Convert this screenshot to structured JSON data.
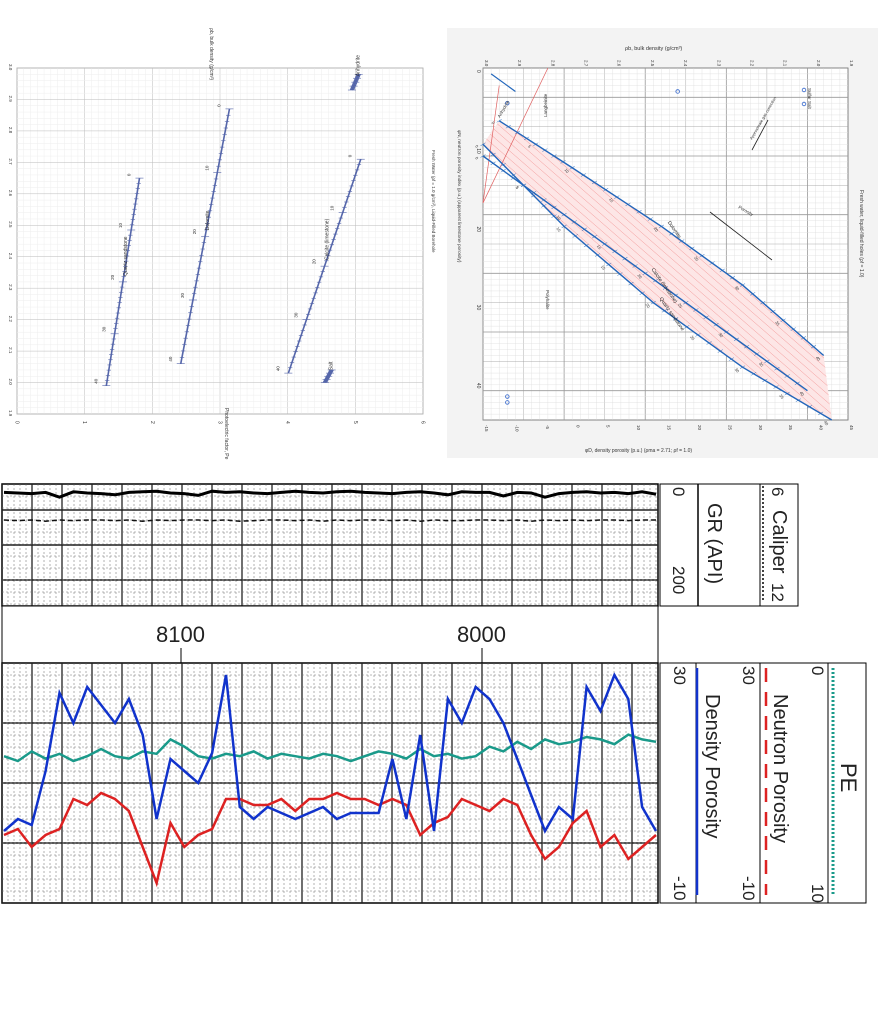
{
  "chart_data": [
    {
      "type": "line",
      "title": "",
      "xlabel": "ρb, bulk density (g/cm³)",
      "ylabel": "Photoelectric factor, Pe",
      "y_ticks": [
        "0",
        "1",
        "2",
        "3",
        "4",
        "5",
        "6"
      ],
      "x_ticks": [
        "3.0",
        "2.9",
        "2.8",
        "2.7",
        "2.6",
        "2.5",
        "2.4",
        "2.3",
        "2.2",
        "2.1",
        "2.0",
        "1.9"
      ],
      "xlim": [
        3.0,
        1.9
      ],
      "ylim": [
        0,
        6
      ],
      "fluid_note": "Fresh Water (ρf = 1.0 g/cm³), Liquid-Filled Borehole",
      "series": [
        {
          "name": "Quartz sandstone",
          "porosity_ticks": [
            "0",
            "10",
            "20",
            "30",
            "40"
          ],
          "x": [
            2.65,
            1.99
          ],
          "y": [
            1.81,
            1.32
          ]
        },
        {
          "name": "Dolomite",
          "porosity_ticks": [
            "0",
            "10",
            "20",
            "30",
            "40"
          ],
          "x": [
            2.87,
            2.06
          ],
          "y": [
            3.14,
            2.42
          ]
        },
        {
          "name": "Calcite (limestone)",
          "porosity_ticks": [
            "0",
            "10",
            "20",
            "30",
            "40"
          ],
          "x": [
            2.71,
            2.03
          ],
          "y": [
            5.08,
            4.01
          ]
        },
        {
          "name": "Anhydrite",
          "x": [
            2.98,
            2.93
          ],
          "y": [
            5.05,
            4.95
          ]
        },
        {
          "name": "Salt",
          "x": [
            2.04,
            2.0
          ],
          "y": [
            4.65,
            4.55
          ]
        }
      ]
    },
    {
      "type": "line",
      "title": "ρb, bulk density (g/cm³)",
      "xlabel": "φD, density porosity (p.u.) (ρma = 2.71; ρf = 1.0)",
      "ylabel": "φN, neutron porosity index (p.u.) (apparent limestone porosity)",
      "y_ticks": [
        "0",
        "10",
        "20",
        "30",
        "40"
      ],
      "x_ticks": [
        "-15",
        "-10",
        "-5",
        "0",
        "5",
        "10",
        "15",
        "20",
        "25",
        "30",
        "35",
        "40",
        "45"
      ],
      "top_ticks": [
        "3.0",
        "2.9",
        "2.8",
        "2.7",
        "2.6",
        "2.5",
        "2.4",
        "2.3",
        "2.2",
        "2.1",
        "2.0",
        "1.9"
      ],
      "xlim": [
        -15,
        45
      ],
      "ylim": [
        0,
        45
      ],
      "fluid_note": "Fresh water, liquid-filled holes (ρf = 1.0)",
      "legend": [
        "Sulfur",
        "Salt"
      ],
      "annotations": [
        "Porosity",
        "Approximate gas correction",
        "Langbeinite",
        "Polyhalite",
        "Anhydrite"
      ],
      "series": [
        {
          "name": "Quartz sandstone",
          "porosity_ticks": [
            "0",
            "5",
            "10",
            "15",
            "20",
            "25",
            "30",
            "35",
            "40"
          ],
          "x": [
            -2,
            12,
            25,
            36,
            45
          ],
          "y": [
            0,
            10,
            21,
            32,
            43
          ]
        },
        {
          "name": "Calcite (limestone)",
          "porosity_ticks": [
            "0",
            "5",
            "10",
            "15",
            "20",
            "25",
            "30",
            "35",
            "40"
          ],
          "x": [
            0,
            10,
            20,
            30,
            40
          ],
          "y": [
            0,
            10,
            20,
            30,
            40
          ]
        },
        {
          "name": "Dolomite",
          "porosity_ticks": [
            "0",
            "5",
            "10",
            "15",
            "20",
            "25",
            "30",
            "35",
            "40"
          ],
          "x": [
            -6,
            2,
            12,
            22,
            34
          ],
          "y": [
            2,
            11,
            22,
            32,
            42
          ]
        }
      ]
    },
    {
      "type": "line",
      "title": "",
      "track_labels": [
        {
          "name": "Caliper",
          "min": "6",
          "max": "12",
          "color": "#000000"
        },
        {
          "name": "GR (API)",
          "min": "0",
          "max": "200",
          "color": "#000000"
        }
      ],
      "depth_labels": [
        "8100",
        "8000"
      ],
      "series": [
        {
          "name": "GR (API)",
          "values": [
            14,
            15,
            16,
            14,
            22,
            13,
            15,
            16,
            18,
            14,
            13,
            12,
            15,
            16,
            19,
            12,
            14,
            13,
            15,
            16,
            14,
            12,
            14,
            15,
            13,
            12,
            14,
            15,
            16,
            14,
            13,
            15,
            18,
            13,
            14,
            14,
            20,
            14,
            15,
            22,
            16,
            14,
            13,
            15,
            14,
            16,
            13,
            17
          ]
        },
        {
          "name": "Caliper",
          "values": [
            60,
            61,
            60,
            62,
            60,
            61,
            60,
            60,
            61,
            60,
            62,
            60,
            61,
            60,
            60,
            61,
            60,
            62,
            61,
            60,
            60,
            61,
            60,
            62,
            60,
            61,
            60,
            60,
            61,
            60,
            62,
            60,
            61,
            61,
            60,
            60,
            61,
            60,
            62,
            60,
            61,
            60,
            61,
            60,
            60,
            61,
            60,
            60
          ]
        }
      ]
    },
    {
      "type": "line",
      "title": "",
      "track_labels": [
        {
          "name": "PE",
          "min": "0",
          "max": "10",
          "color": "#1a9a8a"
        },
        {
          "name": "Neutron Porosity",
          "min": "30",
          "max": "-10",
          "color": "#dd2222"
        },
        {
          "name": "Density Porosity",
          "min": "30",
          "max": "-10",
          "color": "#1133cc"
        }
      ],
      "series": [
        {
          "name": "PE",
          "values": [
            3.2,
            3.0,
            3.4,
            3.1,
            3.3,
            3.0,
            3.2,
            3.5,
            3.2,
            3.1,
            3.4,
            3.3,
            3.9,
            3.6,
            3.2,
            3.1,
            3.3,
            3.2,
            3.4,
            3.1,
            3.3,
            3.2,
            3.1,
            3.3,
            3.2,
            3.0,
            3.2,
            3.4,
            3.3,
            3.1,
            3.5,
            3.2,
            3.3,
            3.1,
            3.2,
            3.6,
            3.4,
            3.8,
            3.5,
            3.9,
            3.7,
            3.8,
            4.0,
            3.9,
            3.7,
            4.1,
            3.9,
            3.8
          ]
        },
        {
          "name": "Neutron Porosity",
          "values": [
            12,
            11,
            14,
            12,
            11,
            6,
            7,
            5,
            6,
            8,
            14,
            20,
            10,
            14,
            12,
            11,
            6,
            6,
            7,
            7,
            6,
            8,
            6,
            6,
            5,
            6,
            6,
            7,
            6,
            7,
            12,
            10,
            9,
            6,
            7,
            8,
            6,
            7,
            12,
            16,
            14,
            10,
            8,
            14,
            12,
            16,
            14,
            12
          ]
        },
        {
          "name": "Density Porosity",
          "values": [
            2,
            4,
            3,
            12,
            25,
            20,
            26,
            23,
            20,
            24,
            18,
            4,
            14,
            12,
            10,
            15,
            28,
            6,
            4,
            6,
            5,
            4,
            5,
            6,
            4,
            5,
            5,
            5,
            14,
            4,
            18,
            2,
            24,
            20,
            26,
            24,
            20,
            14,
            8,
            2,
            6,
            4,
            26,
            22,
            28,
            24,
            6,
            2
          ]
        }
      ]
    }
  ]
}
